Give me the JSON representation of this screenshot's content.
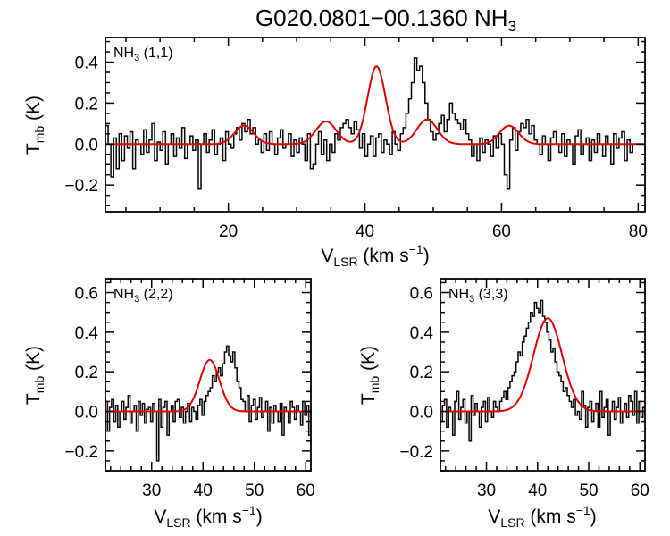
{
  "figure_title": {
    "source": "G020.0801−00.1360",
    "molecule": "NH",
    "sub": "3"
  },
  "colors": {
    "frame": "#000000",
    "data": "#000000",
    "fit": "#e00000",
    "background": "#ffffff"
  },
  "chart_data": [
    {
      "type": "line",
      "label": {
        "base": "NH",
        "sub": "3",
        "suffix": "(1,1)"
      },
      "xlabel": {
        "base": "V",
        "sub": "LSR",
        "unit": "(km s",
        "sup": "−1",
        "close": ")"
      },
      "ylabel": {
        "base": "T",
        "sub": "mb",
        "unit": "(K)"
      },
      "xlim": [
        2,
        81
      ],
      "ylim": [
        -0.33,
        0.52
      ],
      "xticks": [
        20,
        40,
        60,
        80
      ],
      "yticks": [
        -0.2,
        0.0,
        0.2,
        0.4
      ],
      "ytick_labels": [
        "−0.2",
        "0.0",
        "0.2",
        "0.4"
      ],
      "series": [
        {
          "name": "observed spectrum",
          "style": "histogram",
          "x_start": 2.0,
          "x_step": 0.4,
          "values": [
            0.09,
            0.0,
            -0.16,
            0.03,
            -0.12,
            0.05,
            -0.08,
            0.04,
            -0.02,
            0.06,
            -0.12,
            0.02,
            0.0,
            -0.05,
            0.07,
            -0.04,
            0.02,
            0.1,
            -0.08,
            0.01,
            -0.03,
            0.06,
            -0.1,
            0.0,
            0.05,
            -0.06,
            0.03,
            -0.02,
            0.08,
            -0.07,
            0.0,
            0.04,
            -0.03,
            0.02,
            -0.22,
            0.0,
            0.05,
            -0.04,
            0.02,
            0.07,
            -0.05,
            0.0,
            0.03,
            -0.08,
            0.06,
            0.0,
            -0.02,
            0.05,
            0.08,
            0.02,
            0.1,
            0.06,
            0.12,
            0.05,
            0.08,
            0.0,
            0.02,
            -0.04,
            0.05,
            -0.03,
            0.06,
            0.0,
            -0.05,
            0.03,
            0.07,
            -0.02,
            0.0,
            0.05,
            -0.06,
            0.02,
            -0.04,
            0.03,
            0.0,
            -0.08,
            0.05,
            -0.12,
            -0.1,
            0.0,
            0.06,
            -0.05,
            0.02,
            -0.08,
            0.0,
            -0.04,
            0.05,
            0.02,
            0.08,
            0.1,
            0.12,
            0.08,
            0.05,
            0.11,
            0.07,
            -0.02,
            0.05,
            -0.06,
            0.0,
            0.04,
            -0.06,
            0.03,
            0.05,
            -0.04,
            0.02,
            0.0,
            -0.05,
            0.06,
            0.0,
            -0.03,
            0.05,
            0.08,
            0.15,
            0.22,
            0.3,
            0.42,
            0.36,
            0.38,
            0.3,
            0.2,
            0.12,
            0.06,
            0.02,
            0.05,
            0.1,
            0.14,
            0.06,
            0.12,
            0.2,
            0.15,
            0.12,
            0.1,
            0.07,
            0.12,
            0.05,
            0.02,
            -0.06,
            0.0,
            -0.08,
            0.03,
            -0.04,
            0.02,
            0.0,
            -0.06,
            0.04,
            -0.02,
            0.05,
            0.0,
            -0.15,
            -0.22,
            0.02,
            0.08,
            -0.03,
            0.06,
            0.1,
            0.08,
            0.12,
            0.05,
            0.09,
            0.02,
            0.0,
            -0.05,
            0.04,
            0.0,
            -0.08,
            0.03,
            0.06,
            0.0,
            -0.04,
            0.05,
            -0.06,
            0.02,
            0.0,
            -0.1,
            0.04,
            0.07,
            -0.05,
            0.0,
            0.03,
            -0.08,
            0.02,
            -0.04,
            0.05,
            0.0,
            -0.06,
            0.04,
            0.0,
            -0.1,
            0.05,
            -0.02,
            0.03,
            0.06,
            -0.08,
            0.02,
            -0.04,
            0.0
          ]
        },
        {
          "name": "gaussian fit",
          "style": "line",
          "components": [
            {
              "center": 22.3,
              "amplitude": 0.09,
              "sigma": 1.4
            },
            {
              "center": 34.3,
              "amplitude": 0.11,
              "sigma": 1.5
            },
            {
              "center": 41.7,
              "amplitude": 0.38,
              "sigma": 1.3
            },
            {
              "center": 49.1,
              "amplitude": 0.12,
              "sigma": 1.5
            },
            {
              "center": 61.1,
              "amplitude": 0.09,
              "sigma": 1.4
            }
          ]
        }
      ]
    },
    {
      "type": "line",
      "label": {
        "base": "NH",
        "sub": "3",
        "suffix": "(2,2)"
      },
      "xlabel": {
        "base": "V",
        "sub": "LSR",
        "unit": "(km s",
        "sup": "−1",
        "close": ")"
      },
      "ylabel": {
        "base": "T",
        "sub": "mb",
        "unit": "(K)"
      },
      "xlim": [
        21,
        61
      ],
      "ylim": [
        -0.3,
        0.67
      ],
      "xticks": [
        30,
        40,
        50,
        60
      ],
      "yticks": [
        -0.2,
        0.0,
        0.2,
        0.4,
        0.6
      ],
      "ytick_labels": [
        "−0.2",
        "0.0",
        "0.2",
        "0.4",
        "0.6"
      ],
      "series": [
        {
          "name": "observed spectrum",
          "style": "histogram",
          "x_start": 21.0,
          "x_step": 0.4,
          "values": [
            0.05,
            -0.1,
            0.02,
            0.06,
            -0.05,
            0.03,
            -0.08,
            0.0,
            0.05,
            -0.04,
            0.02,
            0.08,
            -0.06,
            0.0,
            0.03,
            -0.1,
            0.05,
            -0.02,
            0.04,
            -0.06,
            0.01,
            0.02,
            -0.05,
            0.04,
            0.0,
            -0.25,
            0.06,
            -0.08,
            0.02,
            0.05,
            -0.12,
            0.0,
            0.03,
            -0.05,
            0.05,
            0.06,
            -0.03,
            0.02,
            -0.06,
            0.0,
            0.04,
            -0.05,
            0.02,
            0.0,
            -0.04,
            0.03,
            0.06,
            -0.02,
            0.05,
            0.08,
            0.1,
            0.12,
            0.18,
            0.15,
            0.2,
            0.22,
            0.18,
            0.24,
            0.3,
            0.33,
            0.28,
            0.25,
            0.3,
            0.22,
            0.15,
            0.12,
            0.06,
            0.05,
            0.0,
            0.08,
            -0.05,
            0.03,
            0.06,
            -0.04,
            0.02,
            0.07,
            -0.03,
            0.0,
            0.05,
            -0.1,
            0.02,
            -0.06,
            0.03,
            0.0,
            -0.05,
            0.04,
            -0.12,
            0.02,
            0.0,
            -0.06,
            0.05,
            0.02,
            -0.04,
            0.03,
            0.0,
            -0.07,
            0.05,
            -0.02,
            0.03,
            -0.12
          ]
        },
        {
          "name": "gaussian fit",
          "style": "line",
          "components": [
            {
              "center": 41.3,
              "amplitude": 0.26,
              "sigma": 1.9
            }
          ]
        }
      ]
    },
    {
      "type": "line",
      "label": {
        "base": "NH",
        "sub": "3",
        "suffix": "(3,3)"
      },
      "xlabel": {
        "base": "V",
        "sub": "LSR",
        "unit": "(km s",
        "sup": "−1",
        "close": ")"
      },
      "ylabel": {
        "base": "T",
        "sub": "mb",
        "unit": "(K)"
      },
      "xlim": [
        21,
        61
      ],
      "ylim": [
        -0.3,
        0.67
      ],
      "xticks": [
        30,
        40,
        50,
        60
      ],
      "yticks": [
        -0.2,
        0.0,
        0.2,
        0.4,
        0.6
      ],
      "ytick_labels": [
        "−0.2",
        "0.0",
        "0.2",
        "0.4",
        "0.6"
      ],
      "series": [
        {
          "name": "observed spectrum",
          "style": "histogram",
          "x_start": 21.0,
          "x_step": 0.4,
          "values": [
            -0.05,
            0.03,
            0.06,
            -0.08,
            0.02,
            0.0,
            -0.12,
            0.05,
            0.1,
            -0.04,
            0.02,
            0.06,
            -0.06,
            0.0,
            -0.15,
            0.08,
            -0.02,
            0.04,
            0.0,
            -0.08,
            0.02,
            0.05,
            -0.05,
            0.07,
            0.0,
            -0.03,
            0.05,
            0.02,
            0.0,
            0.05,
            0.07,
            0.1,
            0.06,
            0.12,
            0.15,
            0.18,
            0.2,
            0.25,
            0.3,
            0.28,
            0.35,
            0.38,
            0.42,
            0.45,
            0.5,
            0.48,
            0.55,
            0.52,
            0.5,
            0.56,
            0.48,
            0.45,
            0.4,
            0.36,
            0.3,
            0.32,
            0.25,
            0.2,
            0.18,
            0.15,
            0.1,
            0.12,
            0.08,
            0.05,
            0.02,
            0.06,
            -0.02,
            0.0,
            -0.04,
            0.1,
            0.03,
            -0.08,
            0.02,
            0.05,
            -0.05,
            0.0,
            0.04,
            -0.08,
            0.1,
            -0.03,
            0.02,
            0.06,
            -0.12,
            0.0,
            0.05,
            -0.04,
            0.02,
            0.07,
            -0.06,
            0.0,
            0.04,
            -0.03,
            0.08,
            0.05,
            -0.02,
            0.1,
            -0.06,
            0.05,
            -0.03,
            0.02
          ]
        },
        {
          "name": "gaussian fit",
          "style": "line",
          "components": [
            {
              "center": 42.0,
              "amplitude": 0.47,
              "sigma": 2.8
            }
          ]
        }
      ]
    }
  ]
}
